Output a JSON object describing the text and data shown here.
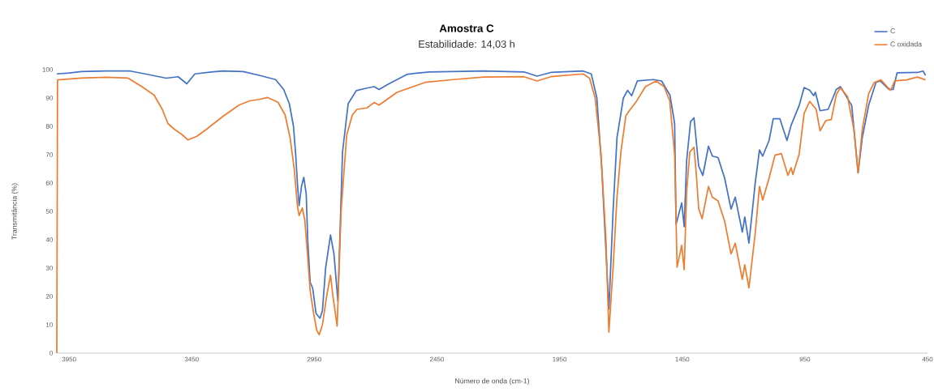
{
  "chart_data": {
    "type": "line",
    "title": "Amostra C",
    "subtitle": "Estabilidade: 14,03 h",
    "xlabel": "Número de onda (cm-1)",
    "ylabel": "Transmitância (%)",
    "xlim": [
      4000,
      450
    ],
    "ylim": [
      0,
      100
    ],
    "xticks": [
      3950,
      3450,
      2950,
      2450,
      1950,
      1450,
      950,
      450
    ],
    "yticks": [
      0,
      10,
      20,
      30,
      40,
      50,
      60,
      70,
      80,
      90,
      100
    ],
    "legend": "top right",
    "series": [
      {
        "name": "C",
        "color": "#4472c4",
        "x": [
          4000,
          3950,
          3900,
          3800,
          3700,
          3640,
          3554,
          3505,
          3470,
          3437,
          3370,
          3323,
          3240,
          3175,
          3108,
          3075,
          3052,
          3035,
          3026,
          3019,
          3012,
          3002,
          2993,
          2983,
          2977,
          2967,
          2957,
          2943,
          2927,
          2917,
          2904,
          2884,
          2870,
          2854,
          2835,
          2812,
          2779,
          2736,
          2706,
          2686,
          2646,
          2570,
          2481,
          2260,
          2095,
          2042,
          1986,
          1854,
          1821,
          1798,
          1778,
          1749,
          1732,
          1716,
          1690,
          1673,
          1656,
          1633,
          1567,
          1534,
          1500,
          1481,
          1475,
          1452,
          1442,
          1432,
          1416,
          1402,
          1393,
          1383,
          1366,
          1343,
          1327,
          1304,
          1277,
          1251,
          1234,
          1205,
          1195,
          1178,
          1152,
          1135,
          1122,
          1096,
          1079,
          1052,
          1023,
          1006,
          973,
          953,
          930,
          914,
          907,
          888,
          855,
          822,
          805,
          759,
          733,
          716,
          690,
          660,
          643,
          607,
          590,
          574,
          491,
          468,
          458
        ],
        "values": [
          98.5,
          98.8,
          99.3,
          99.5,
          99.5,
          98.5,
          97,
          97.5,
          95,
          98.5,
          99.2,
          99.5,
          99.3,
          98,
          96.5,
          93,
          88,
          80,
          70,
          60,
          52,
          59,
          62,
          56,
          40,
          25,
          23,
          14,
          12.3,
          15,
          30,
          41.7,
          35,
          18.4,
          71,
          88,
          92.6,
          93.5,
          94,
          93,
          95,
          98.4,
          99.2,
          99.5,
          99.2,
          97.7,
          99,
          99.5,
          98.5,
          90,
          65,
          15.5,
          50,
          76,
          90,
          92.7,
          90.8,
          96,
          96.5,
          96,
          91,
          81,
          45.5,
          53,
          44.6,
          68,
          81.7,
          83,
          75,
          66,
          62.7,
          73,
          69.5,
          69,
          61.7,
          50.8,
          55,
          42.7,
          48,
          38.8,
          60.3,
          71.7,
          69.5,
          75,
          82.7,
          82.7,
          75,
          80.4,
          87.4,
          93.7,
          92.7,
          90.8,
          92,
          85.5,
          86,
          93,
          94,
          87.4,
          63.6,
          76,
          87.4,
          95.5,
          96,
          93,
          93,
          98.9,
          99,
          99.5,
          98
        ]
      },
      {
        "name": "C oxidada",
        "color": "#ed7d31",
        "x": [
          4000,
          3997,
          3900,
          3800,
          3709,
          3653,
          3603,
          3570,
          3547,
          3521,
          3488,
          3465,
          3429,
          3389,
          3323,
          3257,
          3214,
          3175,
          3142,
          3098,
          3069,
          3049,
          3032,
          3019,
          3012,
          2999,
          2989,
          2979,
          2967,
          2953,
          2940,
          2930,
          2917,
          2900,
          2884,
          2874,
          2857,
          2841,
          2818,
          2795,
          2776,
          2736,
          2706,
          2686,
          2613,
          2498,
          2383,
          2260,
          2095,
          2042,
          1986,
          1854,
          1828,
          1805,
          1781,
          1761,
          1749,
          1732,
          1716,
          1700,
          1680,
          1666,
          1640,
          1600,
          1557,
          1524,
          1501,
          1481,
          1471,
          1452,
          1442,
          1432,
          1419,
          1402,
          1393,
          1383,
          1369,
          1343,
          1327,
          1304,
          1277,
          1251,
          1234,
          1205,
          1195,
          1178,
          1152,
          1135,
          1122,
          1096,
          1072,
          1046,
          1019,
          1006,
          999,
          973,
          953,
          930,
          904,
          888,
          865,
          842,
          822,
          805,
          776,
          750,
          733,
          716,
          690,
          667,
          640,
          601,
          584,
          535,
          491,
          458
        ],
        "values": [
          0,
          96.4,
          97,
          97.3,
          97,
          94,
          91,
          86,
          81,
          79,
          77,
          75.2,
          76.5,
          79,
          83.5,
          87.5,
          89,
          89.5,
          90.2,
          88.5,
          84,
          76,
          65,
          52,
          48.5,
          51.2,
          47,
          36,
          22,
          14,
          8,
          6.5,
          10,
          20,
          27.5,
          20,
          9.5,
          50,
          77,
          84,
          86,
          86.5,
          88.4,
          87.5,
          92,
          95.5,
          96.5,
          97.4,
          97.5,
          96,
          97.5,
          98.5,
          97,
          90,
          70,
          40,
          7.4,
          30,
          55,
          71,
          83.7,
          85.5,
          88.4,
          94,
          96,
          94,
          89,
          70,
          30.3,
          38,
          29.4,
          57,
          71,
          72.6,
          63.6,
          51,
          47.4,
          58.8,
          55,
          53.7,
          46.5,
          35,
          38.8,
          26,
          31.2,
          23,
          42.7,
          58.8,
          54,
          61.7,
          69.8,
          70.4,
          62.7,
          65.4,
          63,
          70.3,
          84.6,
          88.8,
          86,
          78.4,
          82,
          82.4,
          91.2,
          93.6,
          90.5,
          78.8,
          63.6,
          78.8,
          91.5,
          95.5,
          96.4,
          92.7,
          96,
          96.4,
          97.4,
          96.4
        ]
      }
    ]
  }
}
